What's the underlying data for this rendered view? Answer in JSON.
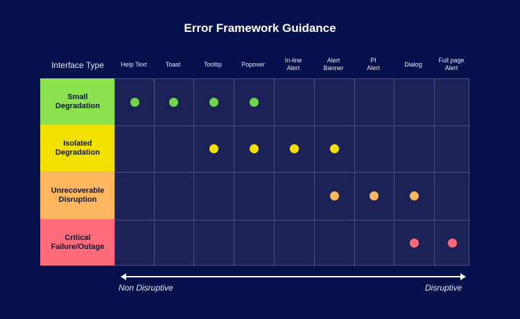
{
  "title": "Error Framework Guidance",
  "row_header": "Interface Type",
  "columns": [
    "Help Text",
    "Toast",
    "Tooltip",
    "Popover",
    "In-line\nAlert",
    "Alert\nBanner",
    "PI\nAlert",
    "Dialog",
    "Full page\nAlert"
  ],
  "rows": [
    {
      "label": "Small\nDegradation",
      "color": "#8ce350",
      "dot_color": "#6fd64a",
      "active_columns": [
        0,
        1,
        2,
        3
      ]
    },
    {
      "label": "Isolated\nDegradation",
      "color": "#f2e000",
      "dot_color": "#f2e000",
      "active_columns": [
        2,
        3,
        4,
        5
      ]
    },
    {
      "label": "Unrecoverable\nDisruption",
      "color": "#fcb65d",
      "dot_color": "#fcb65d",
      "active_columns": [
        5,
        6,
        7
      ]
    },
    {
      "label": "Critical\nFailure/Outage",
      "color": "#ff6b78",
      "dot_color": "#ff6b78",
      "active_columns": [
        7,
        8
      ]
    }
  ],
  "axis": {
    "left_label": "Non  Disruptive",
    "right_label": "Disruptive"
  },
  "colors": {
    "background": "#06104b",
    "grid_fill": "#1c2257",
    "grid_line": "#4c5383"
  }
}
